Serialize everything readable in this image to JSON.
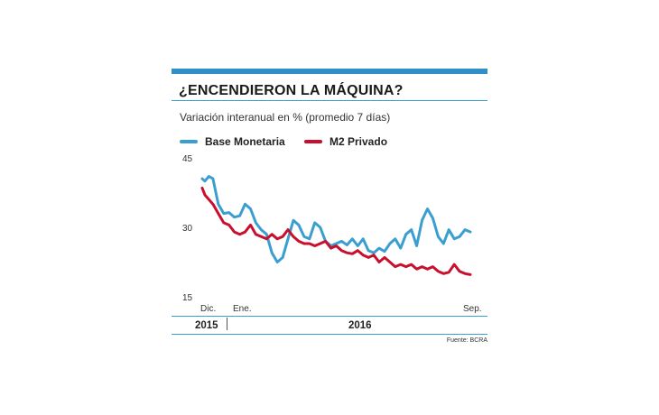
{
  "header": {
    "title": "¿ENCENDIERON LA MÁQUINA?",
    "subtitle": "Variación interanual en % (promedio 7 días)",
    "source": "Fuente: BCRA"
  },
  "colors": {
    "accent": "#2f8fc6",
    "base": "#3a9fd0",
    "m2": "#c8102e",
    "rule": "#3a9fd0"
  },
  "chart_data": {
    "type": "line",
    "title": "¿ENCENDIERON LA MÁQUINA?",
    "subtitle": "Variación interanual en % (promedio 7 días)",
    "xlabel": "",
    "ylabel": "",
    "ylim": [
      15,
      45
    ],
    "yticks": [
      15,
      30,
      45
    ],
    "x_tick_labels": [
      {
        "label": "Dic.",
        "t": 0.0
      },
      {
        "label": "Ene.",
        "t": 0.03
      },
      {
        "label": "Sep.",
        "t": 1.0
      }
    ],
    "year_labels": [
      "2015",
      "2016"
    ],
    "legend": "top",
    "grid": false,
    "series": [
      {
        "name": "Base Monetaria",
        "color": "#3a9fd0",
        "points": [
          [
            0.0,
            40.5
          ],
          [
            0.01,
            40.0
          ],
          [
            0.025,
            41.0
          ],
          [
            0.04,
            40.5
          ],
          [
            0.06,
            35.0
          ],
          [
            0.08,
            33.0
          ],
          [
            0.1,
            33.2
          ],
          [
            0.12,
            32.2
          ],
          [
            0.14,
            32.5
          ],
          [
            0.16,
            35.0
          ],
          [
            0.18,
            34.0
          ],
          [
            0.2,
            31.0
          ],
          [
            0.22,
            29.5
          ],
          [
            0.24,
            28.5
          ],
          [
            0.26,
            24.5
          ],
          [
            0.28,
            22.5
          ],
          [
            0.3,
            23.5
          ],
          [
            0.32,
            27.5
          ],
          [
            0.34,
            31.5
          ],
          [
            0.36,
            30.5
          ],
          [
            0.38,
            28.0
          ],
          [
            0.4,
            27.5
          ],
          [
            0.42,
            31.0
          ],
          [
            0.44,
            30.0
          ],
          [
            0.46,
            27.0
          ],
          [
            0.48,
            26.0
          ],
          [
            0.5,
            26.5
          ],
          [
            0.52,
            27.0
          ],
          [
            0.54,
            26.2
          ],
          [
            0.56,
            27.5
          ],
          [
            0.58,
            26.0
          ],
          [
            0.6,
            27.5
          ],
          [
            0.62,
            25.0
          ],
          [
            0.64,
            24.5
          ],
          [
            0.66,
            25.5
          ],
          [
            0.68,
            24.8
          ],
          [
            0.7,
            26.5
          ],
          [
            0.72,
            27.5
          ],
          [
            0.74,
            25.5
          ],
          [
            0.76,
            28.5
          ],
          [
            0.78,
            29.5
          ],
          [
            0.8,
            26.0
          ],
          [
            0.82,
            31.5
          ],
          [
            0.84,
            34.0
          ],
          [
            0.86,
            32.0
          ],
          [
            0.88,
            28.0
          ],
          [
            0.9,
            26.5
          ],
          [
            0.92,
            29.5
          ],
          [
            0.94,
            27.5
          ],
          [
            0.96,
            28.0
          ],
          [
            0.98,
            29.5
          ],
          [
            1.0,
            29.0
          ]
        ]
      },
      {
        "name": "M2 Privado",
        "color": "#c8102e",
        "points": [
          [
            0.0,
            38.5
          ],
          [
            0.01,
            37.0
          ],
          [
            0.04,
            35.0
          ],
          [
            0.06,
            33.0
          ],
          [
            0.08,
            31.0
          ],
          [
            0.1,
            30.5
          ],
          [
            0.12,
            29.0
          ],
          [
            0.14,
            28.5
          ],
          [
            0.16,
            29.0
          ],
          [
            0.18,
            30.5
          ],
          [
            0.2,
            28.5
          ],
          [
            0.22,
            28.0
          ],
          [
            0.24,
            27.5
          ],
          [
            0.26,
            28.5
          ],
          [
            0.28,
            27.5
          ],
          [
            0.3,
            28.0
          ],
          [
            0.32,
            29.5
          ],
          [
            0.34,
            28.0
          ],
          [
            0.36,
            27.0
          ],
          [
            0.38,
            26.5
          ],
          [
            0.4,
            26.5
          ],
          [
            0.42,
            26.0
          ],
          [
            0.44,
            26.5
          ],
          [
            0.46,
            27.0
          ],
          [
            0.48,
            25.5
          ],
          [
            0.5,
            26.0
          ],
          [
            0.52,
            25.0
          ],
          [
            0.54,
            24.5
          ],
          [
            0.56,
            24.3
          ],
          [
            0.58,
            25.0
          ],
          [
            0.6,
            24.0
          ],
          [
            0.62,
            23.5
          ],
          [
            0.64,
            24.0
          ],
          [
            0.66,
            22.5
          ],
          [
            0.68,
            23.5
          ],
          [
            0.7,
            22.5
          ],
          [
            0.72,
            21.5
          ],
          [
            0.74,
            22.0
          ],
          [
            0.76,
            21.5
          ],
          [
            0.78,
            22.0
          ],
          [
            0.8,
            21.0
          ],
          [
            0.82,
            21.5
          ],
          [
            0.84,
            21.0
          ],
          [
            0.86,
            21.5
          ],
          [
            0.88,
            20.5
          ],
          [
            0.9,
            20.0
          ],
          [
            0.92,
            20.3
          ],
          [
            0.94,
            22.0
          ],
          [
            0.96,
            20.5
          ],
          [
            0.98,
            20.0
          ],
          [
            1.0,
            19.8
          ]
        ]
      }
    ]
  }
}
